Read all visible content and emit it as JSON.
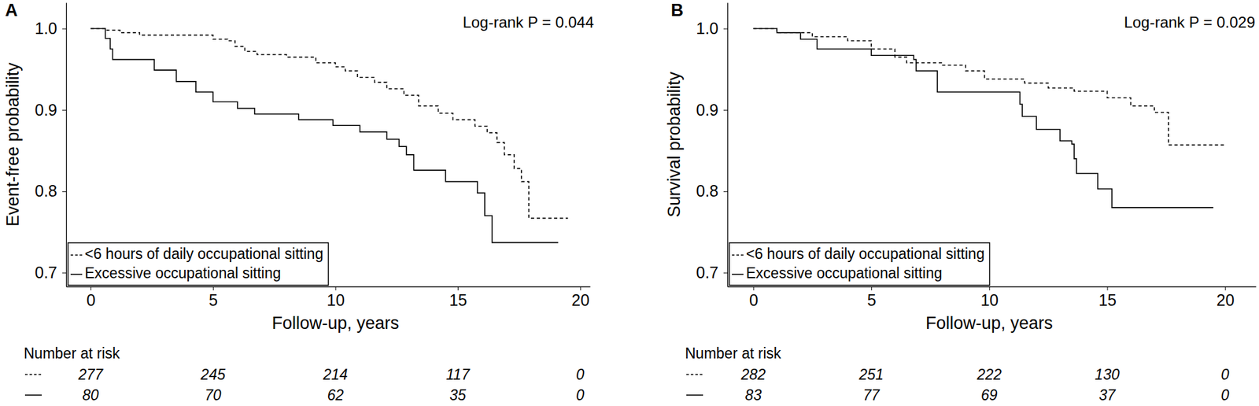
{
  "chart_data": [
    {
      "type": "line",
      "panel": "A",
      "x_label": "Follow-up, years",
      "y_label": "Event-free probability",
      "annotation": "Log-rank P = 0.044",
      "xlim": [
        -1.0,
        20.4
      ],
      "ylim": [
        0.683,
        1.032
      ],
      "xticks": [
        0,
        5,
        10,
        15,
        20
      ],
      "yticks": [
        0.7,
        0.8,
        0.9,
        {
          "value": 1.0,
          "label": "1.0"
        }
      ],
      "legend": "bottom left",
      "series": [
        {
          "name": "<6 hours of daily occupational sitting",
          "color": "#000000",
          "line_style": "dashed",
          "x": [
            0,
            0.6,
            1.2,
            2.0,
            5.0,
            5.6,
            5.9,
            6.3,
            6.8,
            8.0,
            9.2,
            10.0,
            10.4,
            10.9,
            11.6,
            12.1,
            12.8,
            13.4,
            14.2,
            14.8,
            15.7,
            16.2,
            16.6,
            16.9,
            17.3,
            17.6,
            17.9,
            19.5
          ],
          "values": [
            1.0,
            0.998,
            0.995,
            0.992,
            0.987,
            0.985,
            0.978,
            0.972,
            0.968,
            0.965,
            0.958,
            0.953,
            0.948,
            0.94,
            0.934,
            0.926,
            0.918,
            0.905,
            0.896,
            0.888,
            0.88,
            0.872,
            0.86,
            0.845,
            0.828,
            0.812,
            0.767,
            0.767
          ]
        },
        {
          "name": "Excessive occupational sitting",
          "color": "#000000",
          "line_style": "solid",
          "x": [
            0,
            0.4,
            0.6,
            0.8,
            0.9,
            2.6,
            3.5,
            4.3,
            5.0,
            6.0,
            6.7,
            8.5,
            9.9,
            11.0,
            12.1,
            12.6,
            12.9,
            13.2,
            14.5,
            15.8,
            16.1,
            16.4,
            19.1
          ],
          "values": [
            1.0,
            1.0,
            0.988,
            0.975,
            0.962,
            0.949,
            0.935,
            0.922,
            0.91,
            0.902,
            0.895,
            0.888,
            0.881,
            0.873,
            0.864,
            0.855,
            0.845,
            0.826,
            0.812,
            0.798,
            0.77,
            0.737,
            0.737
          ]
        }
      ],
      "risk_table": {
        "title": "Number at risk",
        "x": [
          0,
          5,
          10,
          15,
          20
        ],
        "rows": [
          {
            "line_style": "dashed",
            "values": [
              277,
              245,
              214,
              117,
              0
            ]
          },
          {
            "line_style": "solid",
            "values": [
              80,
              70,
              62,
              35,
              0
            ]
          }
        ]
      }
    },
    {
      "type": "line",
      "panel": "B",
      "x_label": "Follow-up, years",
      "y_label": "Survival probability",
      "annotation": "Log-rank P = 0.029",
      "xlim": [
        -1.1,
        21.3
      ],
      "ylim": [
        0.683,
        1.032
      ],
      "xticks": [
        0,
        5,
        10,
        15,
        20
      ],
      "yticks": [
        0.7,
        0.8,
        0.9,
        {
          "value": 1.0,
          "label": "1.0"
        }
      ],
      "legend": "bottom left",
      "series": [
        {
          "name": "<6 hours of daily occupational sitting",
          "color": "#000000",
          "line_style": "dashed",
          "x": [
            0,
            1.0,
            2.5,
            4.0,
            5.0,
            6.0,
            6.5,
            8.0,
            9.0,
            9.8,
            11.5,
            12.5,
            13.6,
            15.0,
            16.0,
            17.0,
            17.6,
            20.0
          ],
          "values": [
            1.0,
            0.995,
            0.99,
            0.985,
            0.975,
            0.965,
            0.958,
            0.955,
            0.948,
            0.938,
            0.933,
            0.927,
            0.923,
            0.915,
            0.905,
            0.897,
            0.857,
            0.857
          ]
        },
        {
          "name": "Excessive occupational sitting",
          "color": "#000000",
          "line_style": "solid",
          "x": [
            0,
            1.0,
            2.0,
            2.7,
            5.0,
            6.8,
            6.9,
            7.8,
            11.3,
            11.4,
            12.0,
            13.0,
            13.5,
            13.6,
            13.7,
            14.6,
            15.2,
            19.5
          ],
          "values": [
            1.0,
            0.995,
            0.987,
            0.975,
            0.967,
            0.962,
            0.948,
            0.922,
            0.907,
            0.892,
            0.876,
            0.862,
            0.858,
            0.84,
            0.822,
            0.803,
            0.78,
            0.78
          ]
        }
      ],
      "risk_table": {
        "title": "Number at risk",
        "x": [
          0,
          5,
          10,
          15,
          20
        ],
        "rows": [
          {
            "line_style": "dashed",
            "values": [
              282,
              251,
              222,
              130,
              0
            ]
          },
          {
            "line_style": "solid",
            "values": [
              83,
              77,
              69,
              37,
              0
            ]
          }
        ]
      }
    }
  ]
}
